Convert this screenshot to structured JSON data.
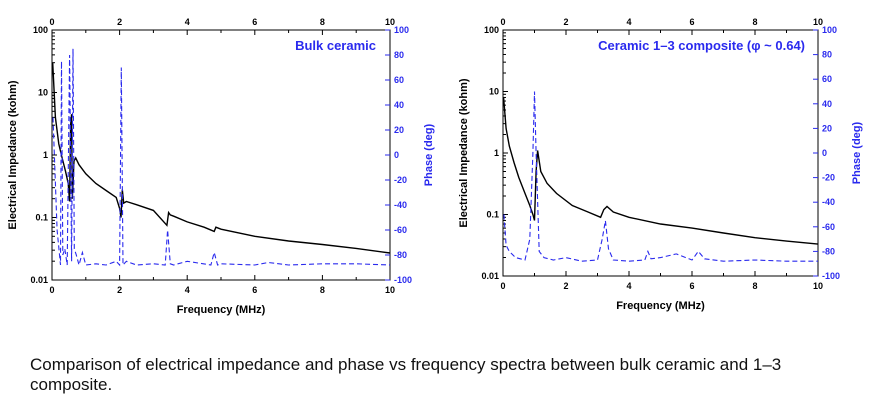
{
  "caption": "Comparison of electrical impedance and phase vs frequency spectra between bulk ceramic and 1–3 composite.",
  "colors": {
    "impedance": "#000000",
    "phase": "#2a2aee",
    "axis": "#000000"
  },
  "chart_data": [
    {
      "type": "line",
      "title": "Bulk ceramic",
      "xlabel": "Frequency (MHz)",
      "ylabel_left": "Electrical Impedance (kohm)",
      "ylabel_right": "Phase (deg)",
      "xlim": [
        0,
        10
      ],
      "ylim_left": [
        0.01,
        100
      ],
      "ylim_right": [
        -100,
        100
      ],
      "yscale_left": "log",
      "x_ticks": [
        "0",
        "2",
        "4",
        "6",
        "8",
        "10"
      ],
      "y_left_ticks": [
        "100",
        "10",
        "1",
        "0.1",
        "0.01"
      ],
      "y_right_ticks": [
        "100",
        "80",
        "60",
        "40",
        "20",
        "0",
        "-20",
        "-40",
        "-60",
        "-80",
        "-100"
      ],
      "series": [
        {
          "name": "Electrical impedance",
          "axis": "left",
          "style": "solid",
          "x": [
            0.02,
            0.1,
            0.2,
            0.3,
            0.4,
            0.48,
            0.52,
            0.55,
            0.58,
            0.6,
            0.65,
            0.7,
            0.8,
            1.0,
            1.3,
            1.6,
            1.9,
            2.0,
            2.04,
            2.08,
            2.12,
            2.2,
            2.5,
            3.0,
            3.4,
            3.45,
            3.5,
            3.6,
            4.0,
            4.5,
            4.8,
            4.85,
            5.0,
            6.0,
            7.0,
            8.0,
            9.0,
            10.0
          ],
          "y": [
            30,
            4,
            1.5,
            0.9,
            0.55,
            0.35,
            0.18,
            3,
            4.5,
            0.2,
            0.8,
            0.9,
            0.7,
            0.5,
            0.35,
            0.27,
            0.21,
            0.14,
            0.1,
            0.28,
            0.17,
            0.18,
            0.16,
            0.13,
            0.075,
            0.12,
            0.11,
            0.105,
            0.085,
            0.07,
            0.06,
            0.07,
            0.065,
            0.05,
            0.042,
            0.037,
            0.032,
            0.027
          ]
        },
        {
          "name": "Phase",
          "axis": "right",
          "style": "dashed",
          "x": [
            0.03,
            0.15,
            0.25,
            0.28,
            0.32,
            0.38,
            0.45,
            0.52,
            0.58,
            0.62,
            0.66,
            0.72,
            0.8,
            0.9,
            1.0,
            1.3,
            1.6,
            1.9,
            2.0,
            2.05,
            2.1,
            2.2,
            2.5,
            3.0,
            3.35,
            3.42,
            3.5,
            3.6,
            4.0,
            4.7,
            4.8,
            4.9,
            5.0,
            6.0,
            6.4,
            7.0,
            8.0,
            9.0,
            10.0
          ],
          "y": [
            30,
            -60,
            -88,
            75,
            -80,
            -75,
            -88,
            80,
            -85,
            85,
            -75,
            -80,
            -88,
            -78,
            -88,
            -87,
            -88,
            -85,
            -88,
            70,
            -88,
            -85,
            -88,
            -87,
            -88,
            -60,
            -87,
            -88,
            -85,
            -88,
            -78,
            -88,
            -87,
            -88,
            -86,
            -88,
            -87,
            -87,
            -88
          ]
        }
      ]
    },
    {
      "type": "line",
      "title": "Ceramic 1–3 composite (φ ~ 0.64)",
      "xlabel": "Frequency (MHz)",
      "ylabel_left": "Electrical Impedance (kohm)",
      "ylabel_right": "Phase (deg)",
      "xlim": [
        0,
        10
      ],
      "ylim_left": [
        0.01,
        100
      ],
      "ylim_right": [
        -100,
        100
      ],
      "yscale_left": "log",
      "x_ticks": [
        "0",
        "2",
        "4",
        "6",
        "8",
        "10"
      ],
      "y_left_ticks": [
        "100",
        "10",
        "1",
        "0.1",
        "0.01"
      ],
      "y_right_ticks": [
        "100",
        "80",
        "60",
        "40",
        "20",
        "0",
        "-20",
        "-40",
        "-60",
        "-80",
        "-100"
      ],
      "series": [
        {
          "name": "Electrical impedance",
          "axis": "left",
          "style": "solid",
          "x": [
            0.02,
            0.1,
            0.2,
            0.35,
            0.5,
            0.7,
            0.85,
            0.95,
            1.0,
            1.05,
            1.1,
            1.2,
            1.4,
            1.7,
            2.2,
            2.7,
            3.1,
            3.2,
            3.3,
            3.5,
            4.0,
            5.0,
            6.0,
            7.0,
            8.0,
            9.0,
            10.0
          ],
          "y": [
            8,
            2.5,
            1.3,
            0.7,
            0.4,
            0.22,
            0.14,
            0.1,
            0.08,
            0.5,
            1.1,
            0.5,
            0.32,
            0.22,
            0.14,
            0.11,
            0.09,
            0.12,
            0.135,
            0.11,
            0.09,
            0.07,
            0.06,
            0.05,
            0.042,
            0.037,
            0.033
          ]
        },
        {
          "name": "Phase",
          "axis": "right",
          "style": "dashed",
          "x": [
            0.03,
            0.1,
            0.2,
            0.4,
            0.7,
            0.85,
            0.95,
            1.0,
            1.05,
            1.15,
            1.3,
            1.6,
            2.0,
            2.5,
            3.0,
            3.15,
            3.25,
            3.35,
            3.5,
            4.0,
            4.5,
            4.6,
            4.7,
            5.0,
            5.5,
            6.0,
            6.2,
            6.4,
            7.0,
            8.0,
            9.0,
            10.0
          ],
          "y": [
            -50,
            -75,
            -80,
            -85,
            -87,
            -70,
            0,
            50,
            0,
            -80,
            -85,
            -87,
            -85,
            -88,
            -87,
            -70,
            -55,
            -78,
            -87,
            -88,
            -87,
            -80,
            -86,
            -85,
            -82,
            -87,
            -80,
            -86,
            -88,
            -87,
            -88,
            -88
          ]
        }
      ]
    }
  ]
}
